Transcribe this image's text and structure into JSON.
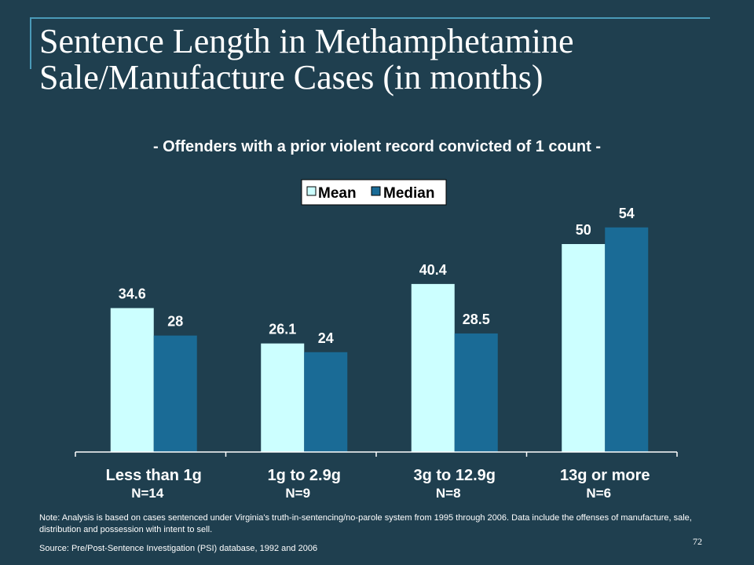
{
  "slide": {
    "title": "Sentence Length in Methamphetamine Sale/Manufacture Cases (in months)",
    "subtitle": "- Offenders with a prior violent  record convicted of 1 count -",
    "note": "Note:  Analysis is based on cases sentenced under Virginia's truth-in-sentencing/no-parole system from 1995 through 2006.  Data include the offenses of manufacture, sale, distribution and possession with intent to sell.",
    "source": "Source:  Pre/Post-Sentence Investigation (PSI) database, 1992 and 2006",
    "page_number": "72"
  },
  "chart_data": {
    "type": "bar",
    "categories": [
      "Less than 1g",
      "1g to 2.9g",
      "3g to 12.9g",
      "13g or more"
    ],
    "category_counts": [
      "N=14",
      "N=9",
      "N=8",
      "N=6"
    ],
    "series": [
      {
        "name": "Mean",
        "values": [
          34.6,
          26.1,
          40.4,
          50
        ],
        "labels": [
          "34.6",
          "26.1",
          "40.4",
          "50"
        ],
        "color": "#ccffff"
      },
      {
        "name": "Median",
        "values": [
          28,
          24,
          28.5,
          54
        ],
        "labels": [
          "28",
          "24",
          "28.5",
          "54"
        ],
        "color": "#1a6b96"
      }
    ],
    "ylim": [
      0,
      54
    ],
    "grid": false,
    "legend_position": "top-center"
  }
}
